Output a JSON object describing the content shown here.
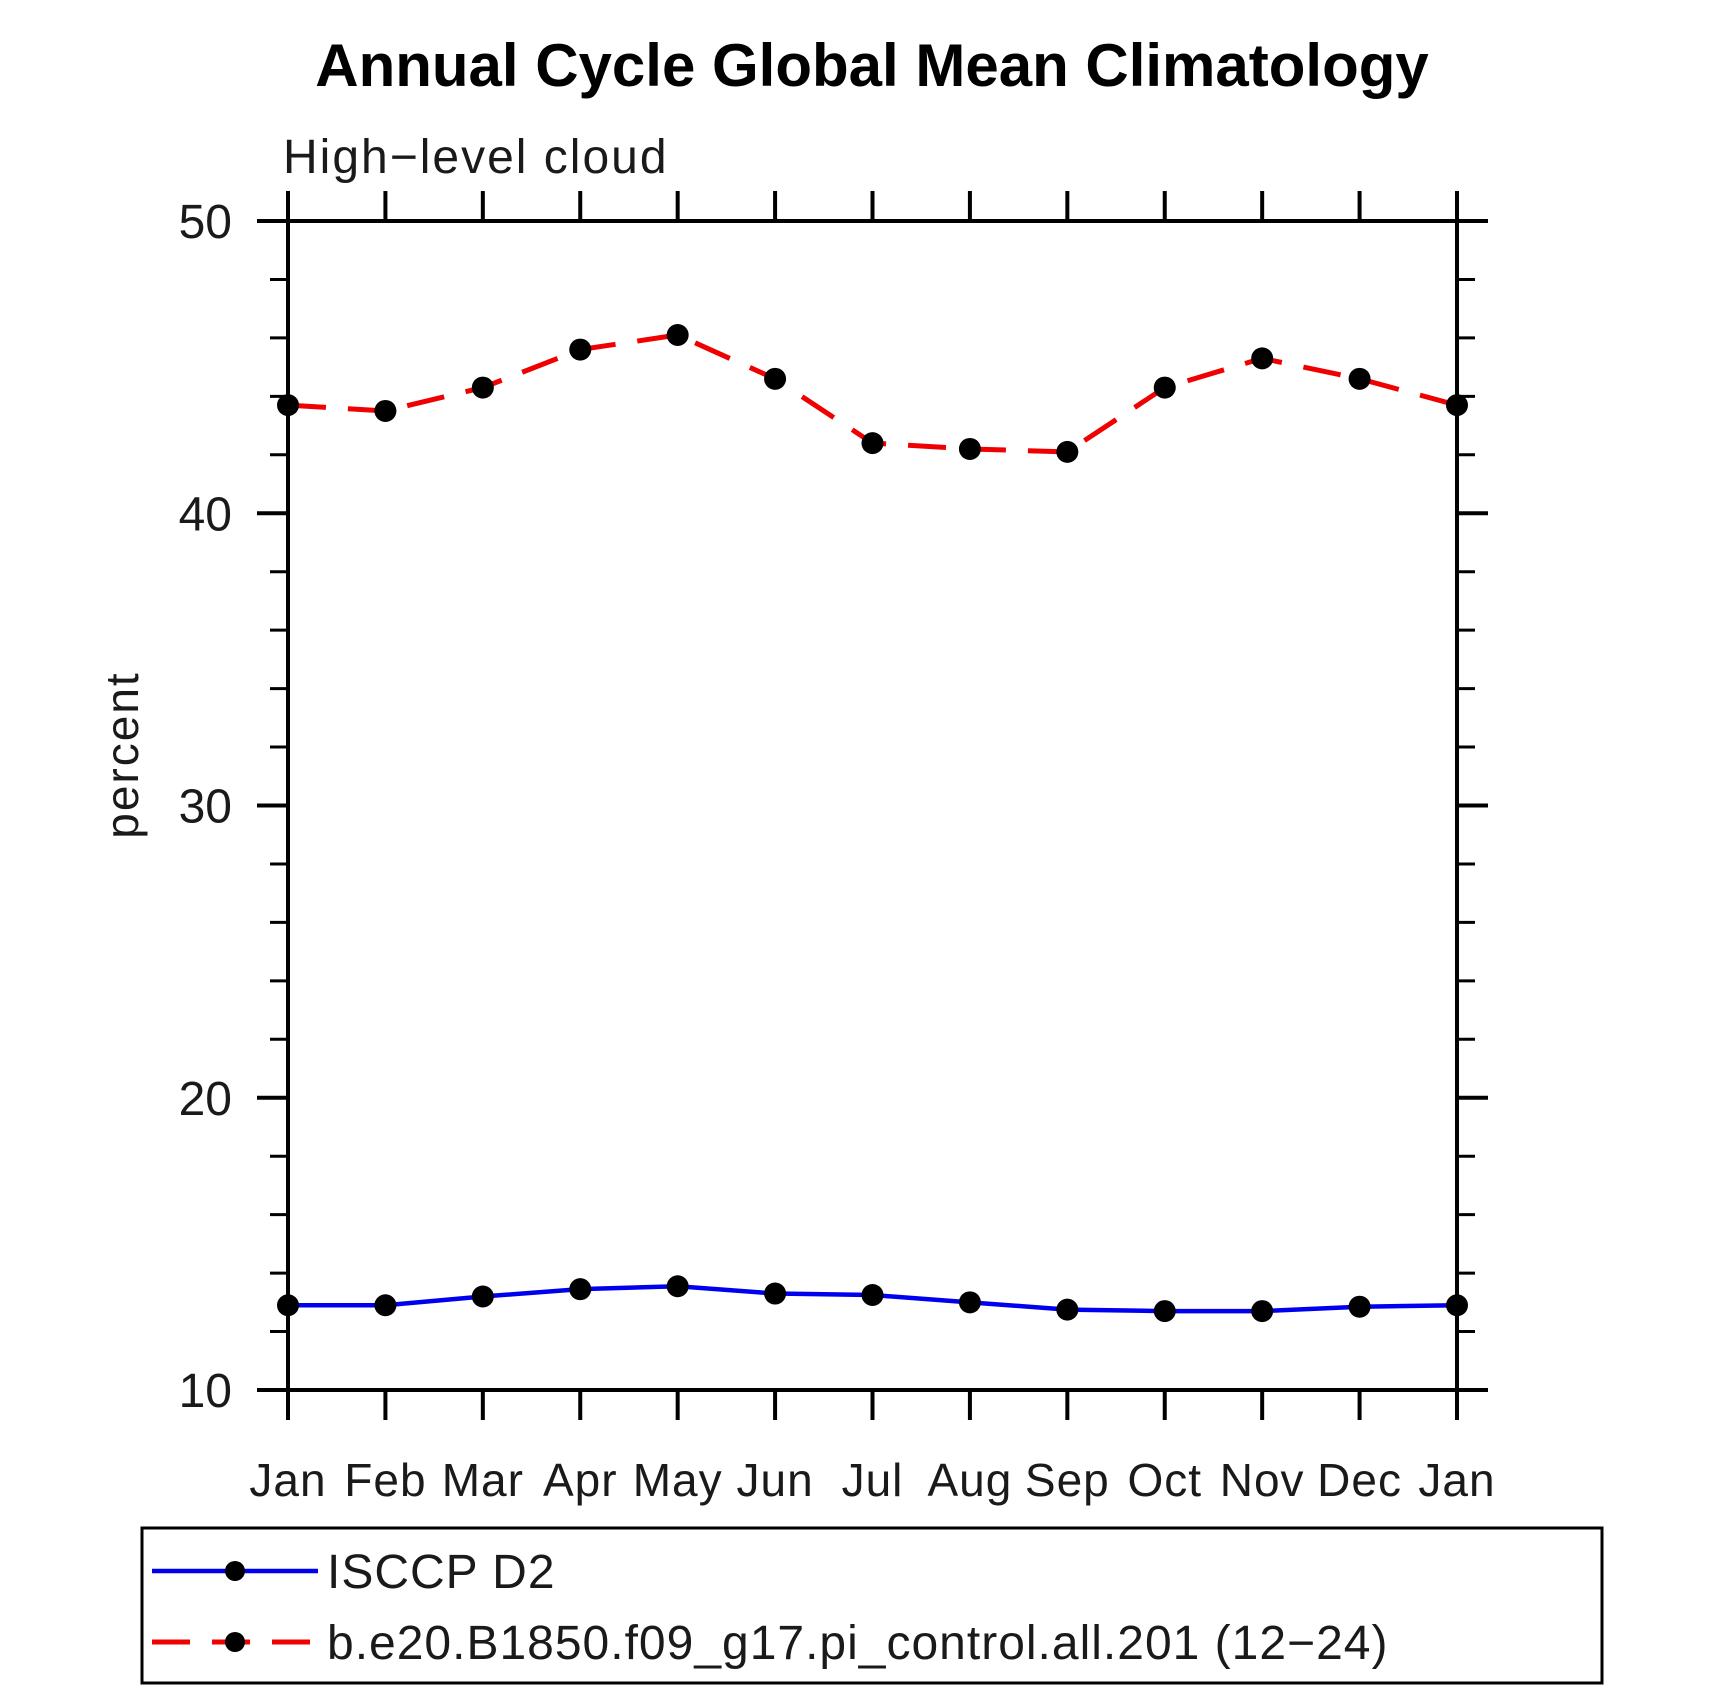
{
  "page": {
    "background": "#ffffff"
  },
  "chart_data": {
    "type": "line",
    "title": "Annual Cycle Global Mean Climatology",
    "subtitle": "High−level cloud",
    "xlabel": "",
    "ylabel": "percent",
    "ylim": [
      10,
      50
    ],
    "ytick_major": [
      10,
      20,
      30,
      40,
      50
    ],
    "ytick_labels": [
      "10",
      "20",
      "30",
      "40",
      "50"
    ],
    "ytick_minor_step": 2,
    "grid": false,
    "legend_position": "bottom-left-box",
    "categories": [
      "Jan",
      "Feb",
      "Mar",
      "Apr",
      "May",
      "Jun",
      "Jul",
      "Aug",
      "Sep",
      "Oct",
      "Nov",
      "Dec",
      "Jan"
    ],
    "series": [
      {
        "name": "ISCCP D2",
        "color": "#0000ee",
        "line_style": "solid",
        "marker": "filled-circle",
        "marker_color": "#000000",
        "values": [
          12.9,
          12.9,
          13.2,
          13.45,
          13.55,
          13.3,
          13.25,
          13.0,
          12.75,
          12.7,
          12.7,
          12.85,
          12.9
        ]
      },
      {
        "name": "b.e20.B1850.f09_g17.pi_control.all.201 (12−24)",
        "color": "#f00000",
        "line_style": "dashed",
        "marker": "filled-circle",
        "marker_color": "#000000",
        "values": [
          43.7,
          43.5,
          44.3,
          45.6,
          46.1,
          44.6,
          42.4,
          42.2,
          42.1,
          44.3,
          45.3,
          44.6,
          43.7
        ]
      }
    ]
  }
}
